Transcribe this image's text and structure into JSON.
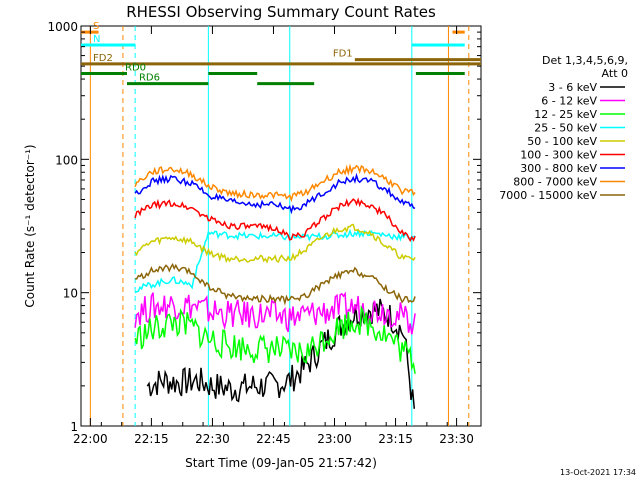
{
  "chart_data": {
    "type": "line",
    "title": "RHESSI Observing Summary Count Rates",
    "xlabel": "Start Time (09-Jan-05 21:57:42)",
    "ylabel": "Count Rate (s⁻¹ detector⁻¹)",
    "y_scale": "log",
    "xlim": [
      "21:57:42",
      "23:36"
    ],
    "ylim": [
      1,
      1000
    ],
    "x_ticks": [
      "22:00",
      "22:15",
      "22:30",
      "22:45",
      "23:00",
      "23:15",
      "23:30"
    ],
    "y_ticks": [
      "1",
      "10",
      "100",
      "1000"
    ],
    "legend_header": [
      "Det 1,3,4,5,6,9,",
      "Att 0"
    ],
    "legend_position": "top-right",
    "timestamp": "13-Oct-2021 17:34",
    "series": [
      {
        "name": "3 - 6 keV",
        "color": "#000000",
        "x": [
          "22:14",
          "22:18",
          "22:22",
          "22:26",
          "22:30",
          "22:35",
          "22:40",
          "22:45",
          "22:49",
          "22:53",
          "22:57",
          "23:01",
          "23:05",
          "23:09",
          "23:13",
          "23:17",
          "23:20"
        ],
        "values": [
          2.0,
          2.2,
          2.1,
          2.2,
          2.0,
          1.9,
          2.0,
          2.0,
          2.2,
          2.8,
          4.0,
          5.5,
          7.0,
          7.5,
          7.0,
          5.0,
          1.0
        ]
      },
      {
        "name": "6 - 12 keV",
        "color": "#ff00ff",
        "x": [
          "22:11",
          "22:15",
          "22:20",
          "22:25",
          "22:29",
          "22:34",
          "22:40",
          "22:45",
          "22:49",
          "22:53",
          "22:57",
          "23:01",
          "23:05",
          "23:09",
          "23:13",
          "23:17",
          "23:20"
        ],
        "values": [
          7.0,
          7.8,
          8.2,
          8.0,
          7.3,
          6.9,
          6.8,
          6.8,
          6.5,
          6.8,
          7.2,
          7.6,
          7.8,
          7.6,
          7.3,
          6.5,
          6.0
        ]
      },
      {
        "name": "12 - 25 keV",
        "color": "#00ff00",
        "x": [
          "22:11",
          "22:15",
          "22:20",
          "22:25",
          "22:29",
          "22:34",
          "22:40",
          "22:45",
          "22:49",
          "22:53",
          "22:57",
          "23:01",
          "23:05",
          "23:09",
          "23:13",
          "23:17",
          "23:20"
        ],
        "values": [
          4.5,
          5.2,
          6.0,
          5.5,
          4.5,
          4.0,
          3.8,
          3.8,
          3.5,
          3.5,
          4.5,
          5.5,
          6.3,
          5.8,
          4.8,
          3.6,
          3.0
        ]
      },
      {
        "name": "25 - 50 keV",
        "color": "#00ffff",
        "x": [
          "22:11",
          "22:15",
          "22:20",
          "22:25",
          "22:29",
          "22:34",
          "22:40",
          "22:45",
          "22:49",
          "22:53",
          "22:57",
          "23:01",
          "23:05",
          "23:09",
          "23:13",
          "23:17",
          "23:20"
        ],
        "values": [
          10.5,
          11.5,
          12.5,
          11.5,
          28.0,
          27.0,
          26.5,
          26.5,
          26.0,
          26.0,
          26.5,
          27.0,
          28.0,
          28.0,
          27.0,
          26.0,
          27.0
        ]
      },
      {
        "name": "50 - 100 keV",
        "color": "#cccc00",
        "x": [
          "22:11",
          "22:15",
          "22:20",
          "22:25",
          "22:29",
          "22:34",
          "22:40",
          "22:45",
          "22:49",
          "22:53",
          "22:57",
          "23:01",
          "23:05",
          "23:09",
          "23:13",
          "23:17",
          "23:20"
        ],
        "values": [
          20.0,
          24.0,
          26.0,
          24.0,
          20.0,
          18.0,
          18.0,
          18.0,
          18.0,
          21.0,
          26.0,
          30.0,
          31.0,
          28.0,
          22.0,
          18.0,
          18.0
        ]
      },
      {
        "name": "100 - 300 keV",
        "color": "#ff0000",
        "x": [
          "22:11",
          "22:15",
          "22:20",
          "22:25",
          "22:29",
          "22:34",
          "22:40",
          "22:45",
          "22:49",
          "22:53",
          "22:57",
          "23:01",
          "23:05",
          "23:09",
          "23:13",
          "23:17",
          "23:20"
        ],
        "values": [
          38.0,
          45.0,
          47.0,
          43.0,
          36.0,
          32.0,
          31.0,
          31.0,
          26.0,
          28.0,
          36.0,
          44.0,
          49.0,
          45.0,
          37.0,
          27.0,
          25.0
        ]
      },
      {
        "name": "300 - 800 keV",
        "color": "#0000ff",
        "x": [
          "22:11",
          "22:15",
          "22:20",
          "22:25",
          "22:29",
          "22:34",
          "22:40",
          "22:45",
          "22:49",
          "22:53",
          "22:57",
          "23:01",
          "23:05",
          "23:09",
          "23:13",
          "23:17",
          "23:20"
        ],
        "values": [
          55.0,
          68.0,
          72.0,
          66.0,
          54.0,
          48.0,
          46.0,
          46.0,
          42.0,
          46.0,
          56.0,
          66.0,
          72.0,
          68.0,
          58.0,
          46.0,
          44.0
        ]
      },
      {
        "name": "800 - 7000 keV",
        "color": "#ff8800",
        "x": [
          "22:11",
          "22:15",
          "22:20",
          "22:25",
          "22:29",
          "22:34",
          "22:40",
          "22:45",
          "22:49",
          "22:53",
          "22:57",
          "23:01",
          "23:05",
          "23:09",
          "23:13",
          "23:17",
          "23:20"
        ],
        "values": [
          65.0,
          80.0,
          85.0,
          77.0,
          63.0,
          56.0,
          54.0,
          54.0,
          52.0,
          57.0,
          68.0,
          80.0,
          86.0,
          82.0,
          70.0,
          57.0,
          56.0
        ]
      },
      {
        "name": "7000 - 15000 keV",
        "color": "#8b6508",
        "x": [
          "22:11",
          "22:15",
          "22:20",
          "22:25",
          "22:29",
          "22:34",
          "22:40",
          "22:45",
          "22:49",
          "22:53",
          "22:57",
          "23:01",
          "23:05",
          "23:09",
          "23:13",
          "23:17",
          "23:20"
        ],
        "values": [
          12.5,
          14.5,
          15.5,
          14.0,
          11.0,
          9.5,
          9.0,
          9.0,
          8.8,
          9.5,
          11.5,
          13.5,
          14.5,
          13.0,
          10.5,
          8.8,
          9.0
        ]
      }
    ],
    "flags": [
      {
        "label": "S",
        "color": "#ff8800",
        "row": 900,
        "segments": [
          [
            "21:57:42",
            "22:02"
          ],
          [
            "23:29",
            "23:32"
          ]
        ]
      },
      {
        "label": "N",
        "color": "#00ffff",
        "row": 720,
        "segments": [
          [
            "21:57:42",
            "22:11"
          ],
          [
            "23:19",
            "23:32"
          ]
        ]
      },
      {
        "label": "FD1",
        "color": "#8b6508",
        "row": 560,
        "segments": [
          [
            "23:05",
            "23:36"
          ]
        ]
      },
      {
        "label": "FD2",
        "color": "#8b6508",
        "row": 520,
        "segments": [
          [
            "21:57:42",
            "23:36"
          ]
        ]
      },
      {
        "label": "RD0",
        "color": "#008000",
        "row": 440,
        "segments": [
          [
            "21:57:42",
            "22:09"
          ],
          [
            "22:29",
            "22:41"
          ],
          [
            "23:20",
            "23:32"
          ]
        ]
      },
      {
        "label": "RD6",
        "color": "#008000",
        "row": 370,
        "segments": [
          [
            "22:09",
            "22:29"
          ],
          [
            "22:41",
            "22:55"
          ]
        ]
      }
    ],
    "vertical_markers": [
      {
        "x": "22:00",
        "color": "#ff8800",
        "style": "solid"
      },
      {
        "x": "22:08",
        "color": "#ff8800",
        "style": "dashed"
      },
      {
        "x": "22:11",
        "color": "#00ffff",
        "style": "dashed"
      },
      {
        "x": "22:29",
        "color": "#00ffff",
        "style": "solid"
      },
      {
        "x": "22:49",
        "color": "#00ffff",
        "style": "solid"
      },
      {
        "x": "23:19",
        "color": "#00ffff",
        "style": "solid"
      },
      {
        "x": "23:28",
        "color": "#ff8800",
        "style": "solid"
      },
      {
        "x": "23:33",
        "color": "#ff8800",
        "style": "dashed"
      }
    ]
  }
}
